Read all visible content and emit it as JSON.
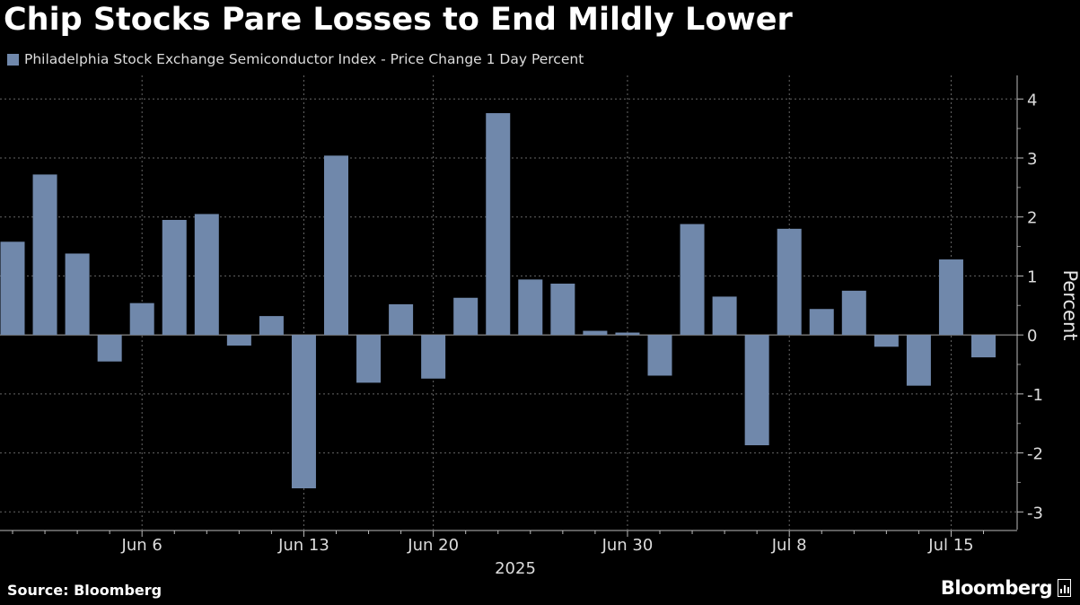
{
  "title": "Chip Stocks Pare Losses to End Mildly Lower",
  "source": "Source: Bloomberg",
  "brand": "Bloomberg",
  "colors": {
    "background": "#000000",
    "bar": "#7088ab",
    "grid": "#666666",
    "text": "#dcdcdc"
  },
  "chart_data": {
    "type": "bar",
    "ylabel": "Percent",
    "xlabel": "2025",
    "ylim": [
      -3.3,
      4.4
    ],
    "y_ticks": [
      4,
      3,
      2,
      1,
      0,
      -1,
      -2,
      -3
    ],
    "grid": true,
    "legend_position": "top-left",
    "series": [
      {
        "name": "Philadelphia Stock Exchange Semiconductor Index - Price Change 1 Day Percent",
        "color": "#7088ab",
        "values": [
          1.58,
          2.72,
          1.38,
          -0.45,
          0.54,
          1.95,
          2.05,
          -0.18,
          0.32,
          -2.6,
          3.04,
          -0.81,
          0.52,
          -0.74,
          0.63,
          3.76,
          0.94,
          0.87,
          0.07,
          0.04,
          -0.69,
          1.88,
          0.65,
          -1.87,
          1.8,
          0.44,
          0.75,
          -0.2,
          -0.86,
          1.28,
          -0.38
        ]
      }
    ],
    "categories": [
      "2025-06-02",
      "2025-06-03",
      "2025-06-04",
      "2025-06-05",
      "2025-06-06",
      "2025-06-09",
      "2025-06-10",
      "2025-06-11",
      "2025-06-12",
      "2025-06-13",
      "2025-06-16",
      "2025-06-17",
      "2025-06-18",
      "2025-06-20",
      "2025-06-23",
      "2025-06-24",
      "2025-06-25",
      "2025-06-26",
      "2025-06-27",
      "2025-06-30",
      "2025-07-01",
      "2025-07-02",
      "2025-07-03",
      "2025-07-07",
      "2025-07-08",
      "2025-07-09",
      "2025-07-10",
      "2025-07-11",
      "2025-07-14",
      "2025-07-15",
      "2025-07-16"
    ],
    "x_tick_labels": [
      {
        "label": "Jun 6",
        "category": "2025-06-06"
      },
      {
        "label": "Jun 13",
        "category": "2025-06-13"
      },
      {
        "label": "Jun 20",
        "category": "2025-06-20"
      },
      {
        "label": "Jun 30",
        "category": "2025-06-30"
      },
      {
        "label": "Jul 8",
        "category": "2025-07-08"
      },
      {
        "label": "Jul 15",
        "category": "2025-07-15"
      }
    ]
  }
}
